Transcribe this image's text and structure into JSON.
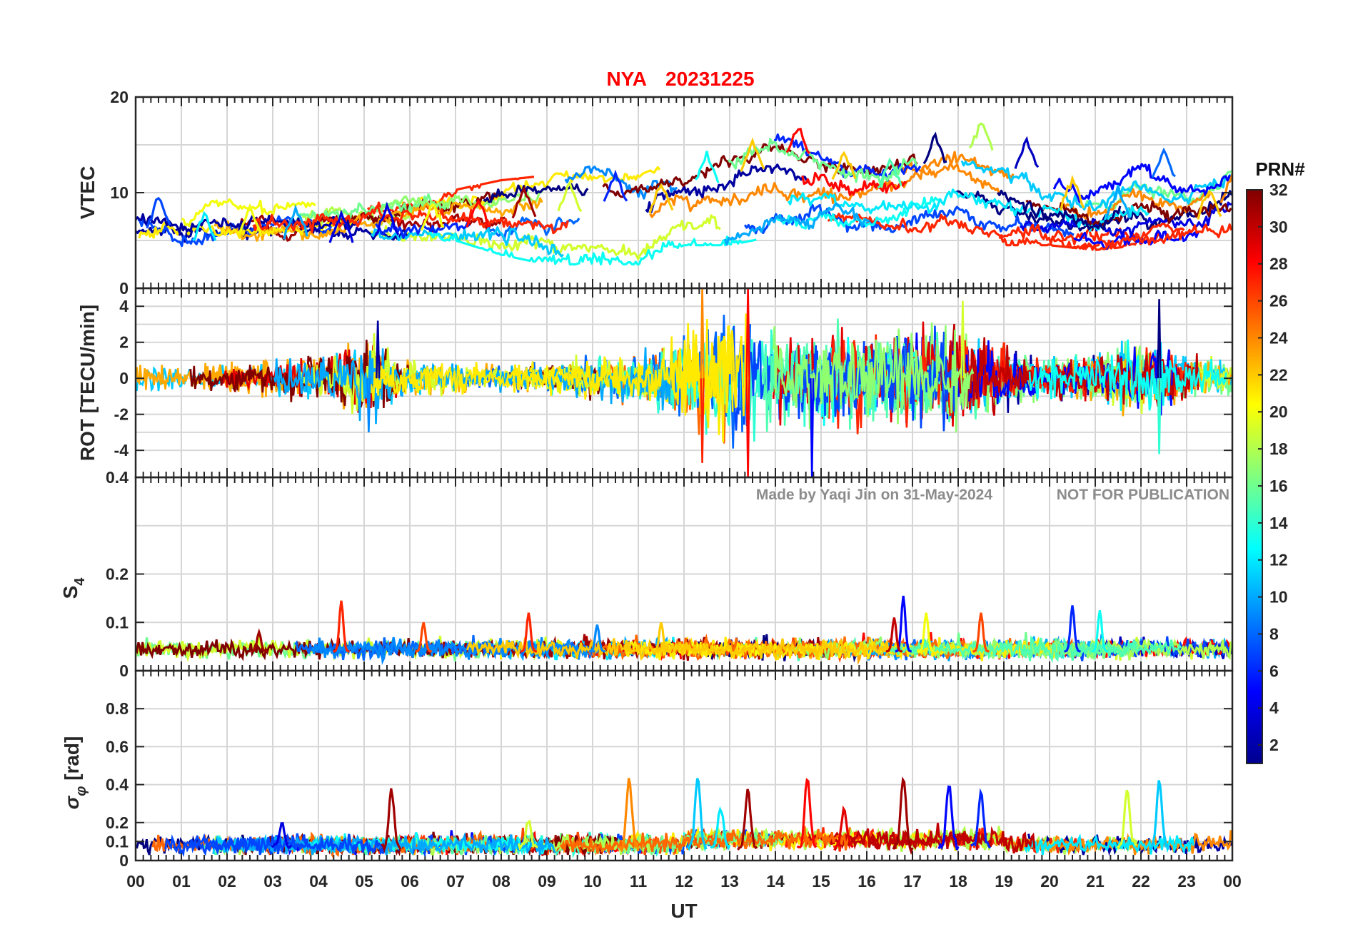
{
  "title": {
    "station": "NYA",
    "date": "20231225",
    "color": "#ff0000"
  },
  "watermark": {
    "author": "Made by Yaqi Jin on 31-May-2024",
    "notice": "NOT FOR PUBLICATION"
  },
  "colorbar": {
    "title": "PRN#",
    "ticks": [
      2,
      4,
      6,
      8,
      10,
      12,
      14,
      16,
      18,
      20,
      22,
      24,
      26,
      28,
      30,
      32
    ],
    "range": [
      1,
      32
    ],
    "colormap": "jet"
  },
  "chart_data": [
    {
      "type": "line",
      "panel": "vtec",
      "ylabel": "VTEC",
      "ylim": [
        0,
        20
      ],
      "yticks": [
        "0",
        "10",
        "20"
      ],
      "grid": true,
      "xlim": [
        0,
        24
      ],
      "x_unit": "UT hour",
      "envelope": {
        "x": [
          0,
          1,
          2,
          3,
          4,
          5,
          6,
          7,
          8,
          9,
          10,
          11,
          12,
          13,
          14,
          15,
          16,
          17,
          18,
          19,
          20,
          21,
          22,
          23,
          24
        ],
        "low": [
          5,
          4.5,
          4.5,
          4.5,
          5.5,
          5.5,
          5.5,
          5.5,
          4,
          3,
          3,
          3,
          5,
          5,
          6,
          7,
          6,
          6,
          6,
          5,
          5,
          4.5,
          5,
          5.5,
          6
        ],
        "high": [
          9,
          8,
          8.5,
          8.5,
          8,
          8.5,
          9,
          9.5,
          10.5,
          11,
          12,
          11,
          13,
          15,
          16,
          14,
          13,
          15,
          16,
          14,
          11,
          10,
          13,
          10,
          12
        ]
      },
      "peaks_per_hour": [
        9.5,
        8,
        8.5,
        8.5,
        8,
        8.5,
        9,
        9.5,
        10.5,
        11,
        12,
        11,
        14,
        15.5,
        17,
        14.5,
        13.5,
        16,
        17.5,
        15.5,
        11.5,
        10.5,
        14.5,
        10.5,
        12
      ]
    },
    {
      "type": "line",
      "panel": "rot",
      "ylabel": "ROT [TECU/min]",
      "ylim": [
        -5.5,
        5
      ],
      "yticks": [
        "4",
        "2",
        "0",
        "-2",
        "-4"
      ],
      "ytick_values": [
        4,
        2,
        0,
        -2,
        -4
      ],
      "grid": true,
      "xlim": [
        0,
        24
      ],
      "x_unit": "UT hour",
      "amplitude": {
        "x": [
          0,
          1,
          2,
          3,
          4,
          5,
          6,
          7,
          8,
          9,
          10,
          11,
          12,
          13,
          14,
          15,
          16,
          17,
          18,
          19,
          20,
          21,
          22,
          23,
          24
        ],
        "value": [
          1,
          0.8,
          0.9,
          1.2,
          1.5,
          3,
          1.2,
          1,
          0.8,
          1,
          1.5,
          1.5,
          3.5,
          4.5,
          3,
          3.5,
          3,
          3.2,
          3,
          2,
          1.2,
          1.5,
          2.5,
          1.5,
          1
        ]
      },
      "extremes": [
        {
          "x": 12.4,
          "y": 5
        },
        {
          "x": 12.4,
          "y": -4.7
        },
        {
          "x": 13.4,
          "y": 5
        },
        {
          "x": 13.4,
          "y": -5.5
        },
        {
          "x": 14.8,
          "y": -5.5
        },
        {
          "x": 18.1,
          "y": 4.3
        },
        {
          "x": 22.4,
          "y": 4.4
        },
        {
          "x": 22.4,
          "y": -4.2
        },
        {
          "x": 5.3,
          "y": 3.2
        },
        {
          "x": 5.1,
          "y": -3
        }
      ]
    },
    {
      "type": "line",
      "panel": "s4",
      "ylabel": "S4",
      "ylim": [
        0,
        0.4
      ],
      "yticks": [
        "0",
        "0.1",
        "0.2",
        "0.4"
      ],
      "ytick_values": [
        0,
        0.1,
        0.2,
        0.4
      ],
      "grid": true,
      "xlim": [
        0,
        24
      ],
      "x_unit": "UT hour",
      "baseline": 0.04,
      "spikes": [
        {
          "x": 4.5,
          "y": 0.145,
          "prn": 27
        },
        {
          "x": 8.6,
          "y": 0.12,
          "prn": 27
        },
        {
          "x": 6.3,
          "y": 0.1,
          "prn": 26
        },
        {
          "x": 16.8,
          "y": 0.155,
          "prn": 5
        },
        {
          "x": 16.6,
          "y": 0.11,
          "prn": 30
        },
        {
          "x": 20.5,
          "y": 0.135,
          "prn": 6
        },
        {
          "x": 21.1,
          "y": 0.125,
          "prn": 13
        },
        {
          "x": 18.5,
          "y": 0.12,
          "prn": 26
        },
        {
          "x": 11.5,
          "y": 0.1,
          "prn": 22
        },
        {
          "x": 17.3,
          "y": 0.12,
          "prn": 20
        },
        {
          "x": 10.1,
          "y": 0.095,
          "prn": 9
        },
        {
          "x": 2.7,
          "y": 0.08,
          "prn": 31
        }
      ]
    },
    {
      "type": "line",
      "panel": "sigma_phi",
      "ylabel": "σφ [rad]",
      "ylim": [
        0,
        1
      ],
      "yticks": [
        "0",
        "0.1",
        "0.2",
        "0.4",
        "0.6",
        "0.8"
      ],
      "ytick_values": [
        0,
        0.1,
        0.2,
        0.4,
        0.6,
        0.8
      ],
      "grid": true,
      "xlim": [
        0,
        24
      ],
      "x_unit": "UT hour",
      "baseline": 0.07,
      "spikes": [
        {
          "x": 5.6,
          "y": 0.37,
          "prn": 31
        },
        {
          "x": 10.8,
          "y": 0.44,
          "prn": 24
        },
        {
          "x": 12.3,
          "y": 0.43,
          "prn": 11
        },
        {
          "x": 13.4,
          "y": 0.37,
          "prn": 31
        },
        {
          "x": 14.7,
          "y": 0.43,
          "prn": 28
        },
        {
          "x": 16.8,
          "y": 0.44,
          "prn": 31
        },
        {
          "x": 17.8,
          "y": 0.4,
          "prn": 5
        },
        {
          "x": 18.5,
          "y": 0.36,
          "prn": 6
        },
        {
          "x": 22.4,
          "y": 0.41,
          "prn": 11
        },
        {
          "x": 21.7,
          "y": 0.38,
          "prn": 19
        },
        {
          "x": 3.2,
          "y": 0.2,
          "prn": 4
        },
        {
          "x": 8.6,
          "y": 0.22,
          "prn": 19
        },
        {
          "x": 12.8,
          "y": 0.28,
          "prn": 12
        },
        {
          "x": 15.5,
          "y": 0.27,
          "prn": 29
        }
      ]
    }
  ],
  "x_axis": {
    "label": "UT",
    "ticks": [
      "00",
      "01",
      "02",
      "03",
      "04",
      "05",
      "06",
      "07",
      "08",
      "09",
      "10",
      "11",
      "12",
      "13",
      "14",
      "15",
      "16",
      "17",
      "18",
      "19",
      "20",
      "21",
      "22",
      "23",
      "00"
    ]
  }
}
